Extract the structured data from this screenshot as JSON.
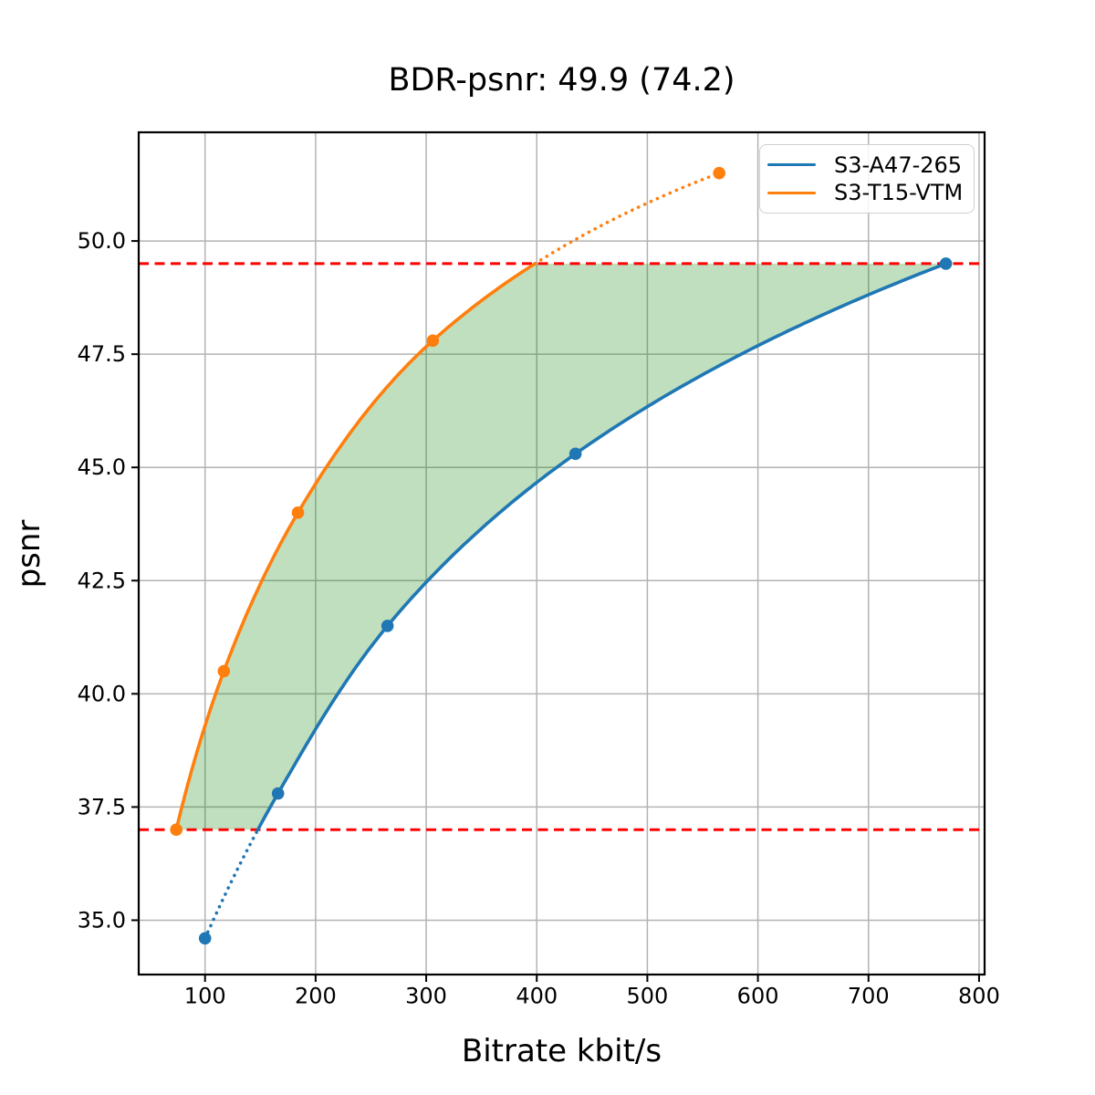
{
  "page": {
    "background": "#ffffff"
  },
  "chart_data": {
    "type": "line",
    "title": "BDR-psnr: 49.9 (74.2)",
    "xlabel": "Bitrate kbit/s",
    "ylabel": "psnr",
    "xlim": [
      40,
      805
    ],
    "ylim": [
      33.8,
      52.4
    ],
    "xticks": [
      {
        "v": 100,
        "label": "100"
      },
      {
        "v": 200,
        "label": "200"
      },
      {
        "v": 300,
        "label": "300"
      },
      {
        "v": 400,
        "label": "400"
      },
      {
        "v": 500,
        "label": "500"
      },
      {
        "v": 600,
        "label": "600"
      },
      {
        "v": 700,
        "label": "700"
      },
      {
        "v": 800,
        "label": "800"
      }
    ],
    "yticks": [
      {
        "v": 35.0,
        "label": "35.0"
      },
      {
        "v": 37.5,
        "label": "37.5"
      },
      {
        "v": 40.0,
        "label": "40.0"
      },
      {
        "v": 42.5,
        "label": "42.5"
      },
      {
        "v": 45.0,
        "label": "45.0"
      },
      {
        "v": 47.5,
        "label": "47.5"
      },
      {
        "v": 50.0,
        "label": "50.0"
      }
    ],
    "grid": true,
    "grid_color": "#b3b3b3",
    "legend_position": "upper right",
    "series": [
      {
        "name": "S3-A47-265",
        "color": "#1f77b4",
        "marker": "circle",
        "x": [
          100,
          166,
          265,
          435,
          770
        ],
        "y": [
          34.6,
          37.8,
          41.5,
          45.3,
          49.5
        ]
      },
      {
        "name": "S3-T15-VTM",
        "color": "#ff7f0e",
        "marker": "circle",
        "x": [
          74,
          117,
          184,
          306,
          565
        ],
        "y": [
          37.0,
          40.5,
          44.0,
          47.8,
          51.5
        ]
      }
    ],
    "hlines": [
      {
        "y": 49.5,
        "color": "#ff0000",
        "style": "dashed"
      },
      {
        "y": 37.0,
        "color": "#ff0000",
        "style": "dashed"
      }
    ],
    "shaded_region": {
      "upper_series": "S3-T15-VTM",
      "lower_series": "S3-A47-265",
      "y_min": 37.0,
      "y_max": 49.5,
      "color": "#008000",
      "opacity": 0.25
    }
  }
}
